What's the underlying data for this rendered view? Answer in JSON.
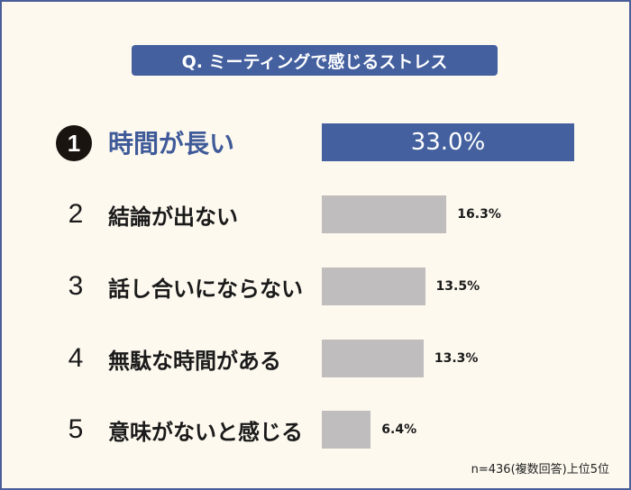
{
  "chart_data": {
    "type": "bar",
    "orientation": "horizontal",
    "title": "Q. ミーティングで感じるストレス",
    "ranks": [
      "1",
      "2",
      "3",
      "4",
      "5"
    ],
    "categories": [
      "時間が長い",
      "結論が出ない",
      "話し合いにならない",
      "無駄な時間がある",
      "意味がないと感じる"
    ],
    "values": [
      33.0,
      16.3,
      13.5,
      13.3,
      6.4
    ],
    "value_labels": [
      "33.0%",
      "16.3%",
      "13.5%",
      "13.3%",
      "6.4%"
    ],
    "unit": "%",
    "xlim": [
      0,
      33
    ],
    "note": "n=436(複数回答)上位5位",
    "colors": {
      "highlight": "#44609f",
      "default": "#bfbdbd"
    }
  }
}
